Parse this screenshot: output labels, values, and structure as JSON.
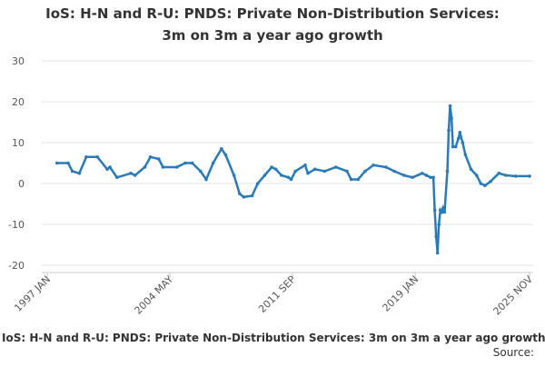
{
  "chart_data": {
    "type": "line",
    "title": "IoS: H-N and R-U: PNDS: Private Non-Distribution Services: 3m on 3m a year ago growth",
    "caption": "IoS: H-N and R-U: PNDS: Private Non-Distribution Services: 3m on 3m a year ago growth",
    "source": "Source:",
    "x": [
      "1997 AUG",
      "1998 APR",
      "1998 JUL",
      "1998 DEC",
      "1999 MAY",
      "2000 JAN",
      "2000 AUG",
      "2000 OCT",
      "2001 MAR",
      "2002 JAN",
      "2002 APR",
      "2002 NOV",
      "2003 MAR",
      "2003 SEP",
      "2003 DEC",
      "2004 OCT",
      "2005 APR",
      "2005 SEP",
      "2006 MAR",
      "2006 JUL",
      "2006 DEC",
      "2007 JUN",
      "2007 SEP",
      "2008 MAR",
      "2008 JUL",
      "2008 OCT",
      "2009 APR",
      "2009 AUG",
      "2010 JAN",
      "2010 JUN",
      "2010 SEP",
      "2011 JAN",
      "2011 JUN",
      "2011 AUG",
      "2011 NOV",
      "2012 JUN",
      "2012 AUG",
      "2013 JAN",
      "2013 AUG",
      "2014 APR",
      "2014 DEC",
      "2015 MAR",
      "2015 AUG",
      "2016 JAN",
      "2016 JUL",
      "2017 APR",
      "2017 OCT",
      "2018 MAY",
      "2018 NOV",
      "2019 JUN",
      "2019 SEP",
      "2019 DEC",
      "2020 FEB",
      "2020 MAR",
      "2020 APR",
      "2020 MAY",
      "2020 JUN",
      "2020 JUL",
      "2020 AUG",
      "2020 SEP",
      "2020 OCT",
      "2020 DEC",
      "2021 JAN",
      "2021 FEB",
      "2021 MAR",
      "2021 APR",
      "2021 JUN",
      "2021 AUG",
      "2021 SEP",
      "2021 NOV",
      "2022 JAN",
      "2022 MAY",
      "2022 SEP",
      "2022 DEC",
      "2023 MAR",
      "2023 JUL",
      "2024 JAN",
      "2024 JUN",
      "2025 JAN",
      "2025 NOV"
    ],
    "series": [
      {
        "color": "#2a7ab8",
        "values": [
          5,
          5,
          3,
          2.5,
          6.5,
          6.5,
          3.5,
          4,
          1.5,
          2.5,
          2,
          4,
          6.5,
          6,
          4,
          4,
          5,
          5,
          3,
          1,
          5,
          8.5,
          7,
          2,
          -2.5,
          -3.3,
          -3,
          0,
          2,
          4,
          3.5,
          2,
          1.5,
          1,
          3,
          4.5,
          2.5,
          3.5,
          3,
          4,
          3,
          1,
          1,
          3,
          4.5,
          4,
          3,
          2,
          1.5,
          2.5,
          2,
          1.5,
          1.5,
          -6.5,
          -13,
          -17,
          -10,
          -6.5,
          -7,
          -6,
          -7,
          3,
          13,
          19,
          16,
          9,
          9,
          11,
          12.5,
          10,
          7,
          3.5,
          2,
          0,
          -0.5,
          0.5,
          2.5,
          2,
          1.8,
          1.8
        ]
      }
    ],
    "ylim": [
      -20,
      30
    ],
    "yticks": [
      -20,
      -10,
      0,
      10,
      20,
      30
    ],
    "xlim": [
      "1997 JAN",
      "2025 NOV"
    ],
    "xticks": [
      "1997 JAN",
      "2004 MAY",
      "2011 SEP",
      "2019 JAN",
      "2025 NOV"
    ],
    "grid": true
  }
}
